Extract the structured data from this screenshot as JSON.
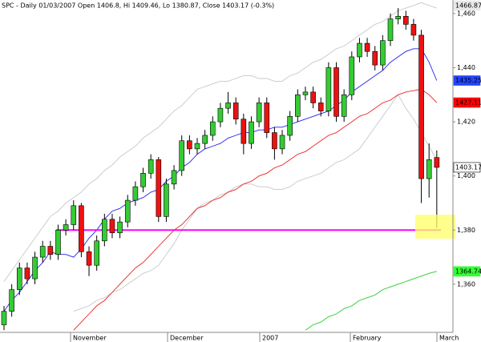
{
  "chart_data": {
    "type": "candlestick",
    "title": "SPC - Daily 01/03/2007 Open 1406.8, Hi 1409.46, Lo 1380.87, Close 1403.17 (-0.3%)",
    "open": [
      1345,
      1350,
      1358,
      1366,
      1362,
      1370,
      1374,
      1371,
      1380,
      1382,
      1389,
      1372,
      1367,
      1376,
      1384,
      1379,
      1383,
      1391,
      1396,
      1401,
      1406,
      1385,
      1397,
      1402,
      1413,
      1410,
      1412,
      1415,
      1420,
      1425,
      1427,
      1421,
      1412,
      1420,
      1427,
      1416,
      1410,
      1415,
      1422,
      1430,
      1431,
      1427,
      1424,
      1440,
      1422,
      1430,
      1444,
      1449,
      1446,
      1441,
      1450,
      1458,
      1459,
      1456,
      1452,
      1399,
      1406.8
    ],
    "high": [
      1352,
      1360,
      1368,
      1368,
      1372,
      1376,
      1376,
      1382,
      1384,
      1391,
      1390,
      1374,
      1378,
      1386,
      1386,
      1385,
      1393,
      1398,
      1403,
      1408,
      1407,
      1399,
      1404,
      1415,
      1415,
      1414,
      1417,
      1422,
      1427,
      1431,
      1429,
      1423,
      1422,
      1429,
      1429,
      1418,
      1417,
      1424,
      1432,
      1433,
      1433,
      1429,
      1442,
      1442,
      1432,
      1446,
      1451,
      1451,
      1448,
      1452,
      1460,
      1462,
      1461,
      1458,
      1454,
      1412,
      1409.46
    ],
    "low": [
      1343,
      1348,
      1356,
      1360,
      1360,
      1368,
      1369,
      1369,
      1378,
      1380,
      1370,
      1363,
      1365,
      1374,
      1377,
      1377,
      1381,
      1389,
      1394,
      1399,
      1383,
      1383,
      1395,
      1400,
      1408,
      1408,
      1410,
      1413,
      1418,
      1423,
      1419,
      1408,
      1410,
      1418,
      1414,
      1406,
      1408,
      1413,
      1420,
      1428,
      1425,
      1422,
      1422,
      1420,
      1420,
      1428,
      1442,
      1444,
      1439,
      1439,
      1448,
      1456,
      1454,
      1450,
      1390,
      1392,
      1380.87
    ],
    "close": [
      1350,
      1358,
      1366,
      1362,
      1370,
      1374,
      1371,
      1380,
      1382,
      1389,
      1372,
      1367,
      1376,
      1384,
      1379,
      1383,
      1391,
      1396,
      1401,
      1406,
      1385,
      1397,
      1402,
      1413,
      1410,
      1412,
      1415,
      1420,
      1425,
      1427,
      1421,
      1412,
      1420,
      1427,
      1416,
      1410,
      1415,
      1422,
      1430,
      1431,
      1427,
      1424,
      1440,
      1422,
      1430,
      1444,
      1449,
      1446,
      1441,
      1450,
      1458,
      1459,
      1456,
      1452,
      1399,
      1406,
      1403.17
    ],
    "up_color": "#33cc33",
    "down_color": "#ee1111",
    "indicators": [
      {
        "color": "#c8c8c8",
        "values": [
          1361,
          1365,
          1369,
          1373,
          1377,
          1381,
          1385,
          1387,
          1390,
          1392,
          1394,
          1397,
          1399,
          1402,
          1404,
          1407,
          1409,
          1411,
          1414,
          1416,
          1418,
          1421,
          1424,
          1426,
          1429,
          1432,
          1433,
          1434,
          1435,
          1435,
          1436,
          1437,
          1437,
          1436,
          1436,
          1435,
          1435,
          1437,
          1438,
          1440,
          1442,
          1443,
          1445,
          1447,
          1448,
          1450,
          1452,
          1454,
          1456,
          1457,
          1459,
          1461,
          1462,
          1463,
          1464,
          1463,
          1462
        ]
      },
      {
        "color": "#c8c8c8",
        "values": [
          null,
          null,
          null,
          null,
          null,
          null,
          null,
          null,
          null,
          1350,
          1351,
          1352,
          1354,
          1355,
          1357,
          1358,
          1360,
          1362,
          1364,
          1365,
          1367,
          1371,
          1375,
          1380,
          1384,
          1388,
          1390,
          1391,
          1393,
          1394,
          1396,
          1397,
          1397,
          1396,
          1396,
          1395,
          1395,
          1396,
          1398,
          1399,
          1400,
          1401,
          1403,
          1405,
          1406,
          1408,
          1410,
          1414,
          1418,
          1422,
          1426,
          1430,
          1425,
          1421,
          1416,
          1411,
          1406
        ]
      },
      {
        "color": "#2222ee",
        "values": [
          1350,
          1354,
          1357,
          1361,
          1365,
          1368,
          1372,
          1371,
          1371,
          1370,
          1373,
          1377,
          1380,
          1384,
          1387,
          1388,
          1390,
          1391,
          1392,
          1394,
          1395,
          1398,
          1400,
          1403,
          1405,
          1408,
          1410,
          1411,
          1412,
          1414,
          1415,
          1416,
          1416,
          1417,
          1417,
          1418,
          1418,
          1419,
          1420,
          1421,
          1422,
          1423,
          1424,
          1426,
          1428,
          1431,
          1433,
          1435,
          1437,
          1439,
          1442,
          1444,
          1446,
          1447,
          1447,
          1442,
          1435.25
        ]
      },
      {
        "color": "#ee2222",
        "values": [
          null,
          null,
          null,
          null,
          null,
          null,
          null,
          null,
          null,
          1343,
          1346,
          1349,
          1352,
          1354,
          1357,
          1360,
          1363,
          1366,
          1368,
          1371,
          1374,
          1377,
          1380,
          1382,
          1385,
          1388,
          1389,
          1391,
          1392,
          1394,
          1395,
          1397,
          1398,
          1400,
          1401,
          1403,
          1404,
          1406,
          1408,
          1409,
          1411,
          1413,
          1415,
          1416,
          1418,
          1420,
          1422,
          1423,
          1425,
          1427,
          1428,
          1430,
          1431,
          1431.5,
          1432,
          1430,
          1427.11
        ]
      },
      {
        "color": "#22cc22",
        "values": [
          null,
          null,
          null,
          null,
          null,
          null,
          null,
          null,
          null,
          null,
          null,
          null,
          null,
          null,
          null,
          null,
          null,
          null,
          null,
          null,
          null,
          null,
          null,
          null,
          null,
          null,
          null,
          null,
          null,
          null,
          null,
          null,
          null,
          null,
          null,
          null,
          null,
          null,
          null,
          1343,
          1345,
          1346,
          1348,
          1349,
          1351,
          1352,
          1354,
          1355,
          1356,
          1358,
          1359,
          1360,
          1361,
          1362,
          1363,
          1364,
          1364.74
        ]
      }
    ],
    "hline": {
      "value": 1380,
      "color": "#ff00ff"
    },
    "price_labels": [
      {
        "value": 1466.87,
        "background": "#e8e8e8",
        "text_color": "#000000"
      },
      {
        "value": 1435.25,
        "background": "#2244ff",
        "text_color": "#c8d0ff"
      },
      {
        "value": 1427.11,
        "background": "#ff0000",
        "text_color": "#ffb0b0"
      },
      {
        "value": 1403.17,
        "background": "#ffffff",
        "text_color": "#000000"
      },
      {
        "value": 1364.74,
        "background": "#33ff33",
        "text_color": "#006600"
      }
    ],
    "ylim": [
      1342.2,
      1465
    ],
    "yticks": [
      {
        "value": 1360,
        "label": "1,360"
      },
      {
        "value": 1380,
        "label": "1,380"
      },
      {
        "value": 1400,
        "label": "1,400"
      },
      {
        "value": 1420,
        "label": "1,420"
      },
      {
        "value": 1440,
        "label": "1,440"
      },
      {
        "value": 1460,
        "label": "1,460"
      }
    ],
    "x_labels": [
      "November",
      "December",
      "2007",
      "February",
      "March"
    ]
  }
}
